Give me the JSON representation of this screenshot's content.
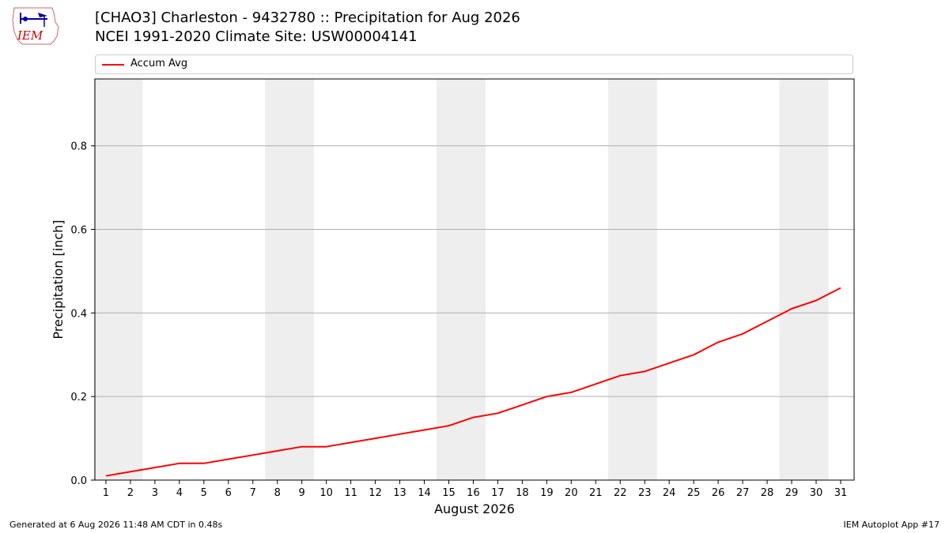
{
  "logo": {
    "text": "IEM"
  },
  "header": {
    "title_line1": "[CHAO3] Charleston - 9432780 :: Precipitation for Aug 2026",
    "title_line2": "NCEI 1991-2020 Climate Site: USW00004141"
  },
  "footer": {
    "generated": "Generated at 6 Aug 2026 11:48 AM CDT in 0.48s",
    "app": "IEM Autoplot App #17"
  },
  "colors": {
    "line": "#ff0000",
    "weekend_band": "#eeeeee",
    "grid": "#b0b0b0"
  },
  "chart_data": {
    "type": "line",
    "xlabel": "August 2026",
    "ylabel": "Precipitation [inch]",
    "ylim": [
      0,
      0.96
    ],
    "yticks": [
      "0.0",
      "0.2",
      "0.4",
      "0.6",
      "0.8"
    ],
    "x": [
      1,
      2,
      3,
      4,
      5,
      6,
      7,
      8,
      9,
      10,
      11,
      12,
      13,
      14,
      15,
      16,
      17,
      18,
      19,
      20,
      21,
      22,
      23,
      24,
      25,
      26,
      27,
      28,
      29,
      30,
      31
    ],
    "weekend_bands": [
      [
        1,
        2
      ],
      [
        8,
        9
      ],
      [
        15,
        16
      ],
      [
        22,
        23
      ],
      [
        29,
        30
      ]
    ],
    "grid": "horizontal",
    "legend_position": "top",
    "series": [
      {
        "name": "Accum Avg",
        "values": [
          0.01,
          0.02,
          0.03,
          0.04,
          0.04,
          0.05,
          0.06,
          0.07,
          0.08,
          0.08,
          0.09,
          0.1,
          0.11,
          0.12,
          0.13,
          0.15,
          0.16,
          0.18,
          0.2,
          0.21,
          0.23,
          0.25,
          0.26,
          0.28,
          0.3,
          0.33,
          0.35,
          0.38,
          0.41,
          0.43,
          0.46
        ]
      }
    ]
  }
}
